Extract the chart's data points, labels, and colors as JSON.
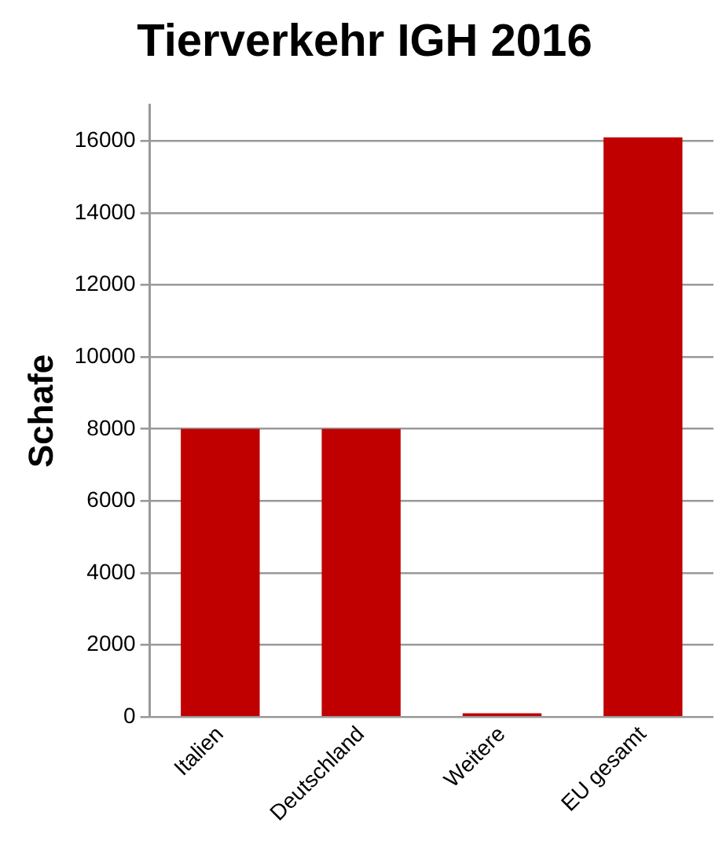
{
  "chart_data": {
    "type": "bar",
    "title": "Tierverkehr IGH 2016",
    "ylabel": "Schafe",
    "categories": [
      "Italien",
      "Deutschland",
      "Weitere",
      "EU gesamt"
    ],
    "values": [
      8000,
      8000,
      100,
      16100
    ],
    "color": "#c00000",
    "ylim": [
      0,
      17000
    ],
    "yticks": [
      0,
      2000,
      4000,
      6000,
      8000,
      10000,
      12000,
      14000,
      16000
    ],
    "grid": "y",
    "legend": false
  }
}
